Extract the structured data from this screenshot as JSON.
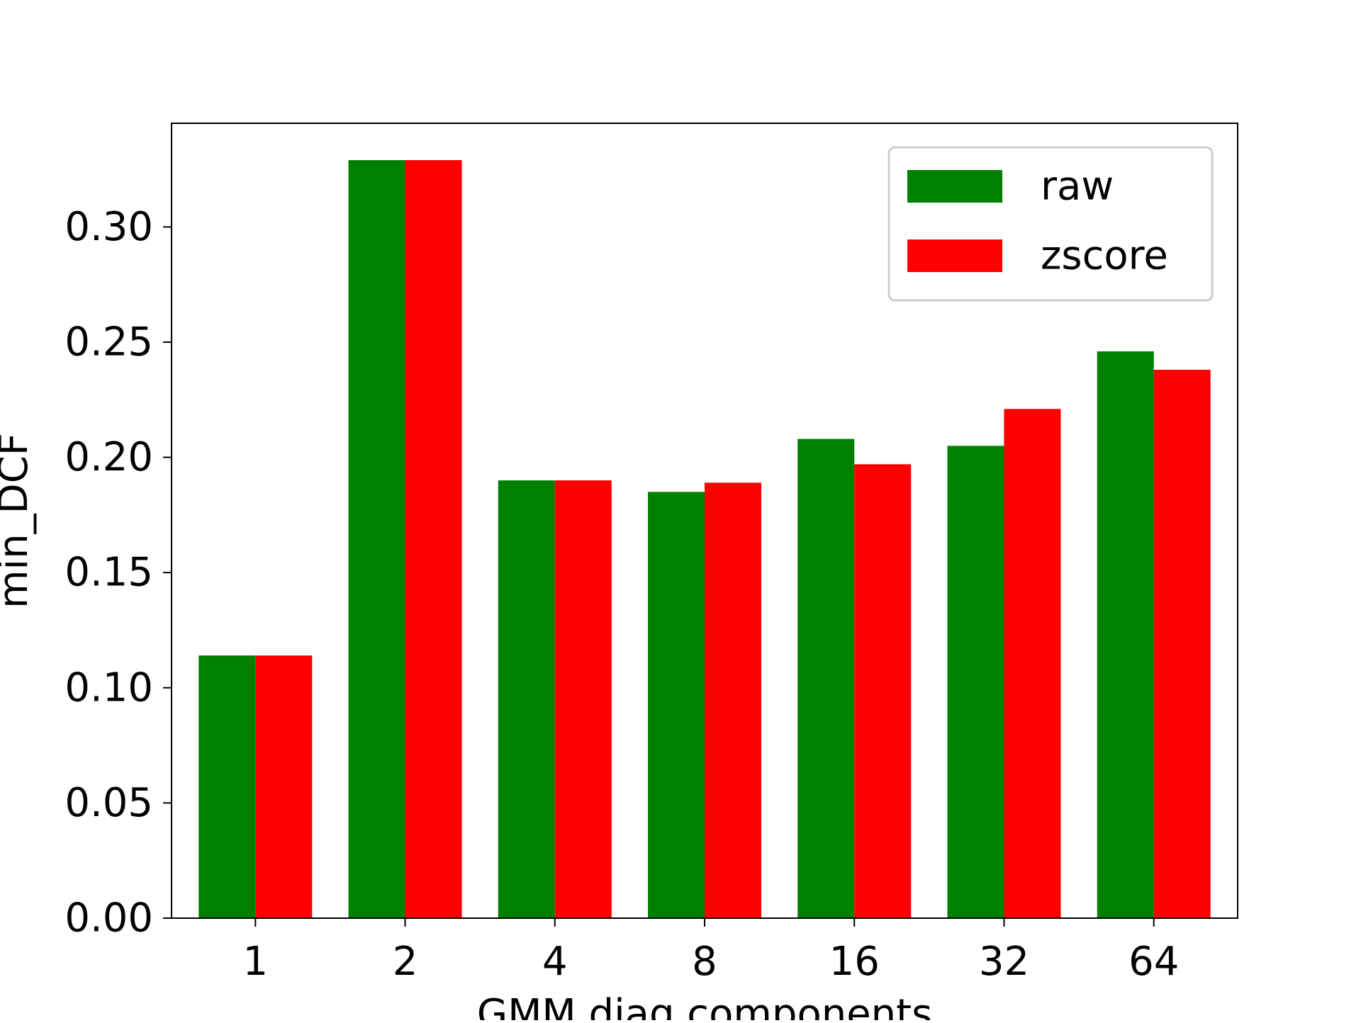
{
  "chart_data": {
    "type": "bar",
    "title": "",
    "xlabel": "GMM diag components",
    "ylabel": "min_DCF",
    "categories": [
      "1",
      "2",
      "4",
      "8",
      "16",
      "32",
      "64"
    ],
    "series": [
      {
        "name": "raw",
        "color": "#008000",
        "values": [
          0.114,
          0.329,
          0.19,
          0.185,
          0.208,
          0.205,
          0.246
        ]
      },
      {
        "name": "zscore",
        "color": "#ff0000",
        "values": [
          0.114,
          0.329,
          0.19,
          0.189,
          0.197,
          0.221,
          0.238
        ]
      }
    ],
    "ylim": [
      0,
      0.345
    ],
    "yticks": [
      "0.00",
      "0.05",
      "0.10",
      "0.15",
      "0.20",
      "0.25",
      "0.30"
    ],
    "grid": false,
    "legend_position": "top-right"
  }
}
